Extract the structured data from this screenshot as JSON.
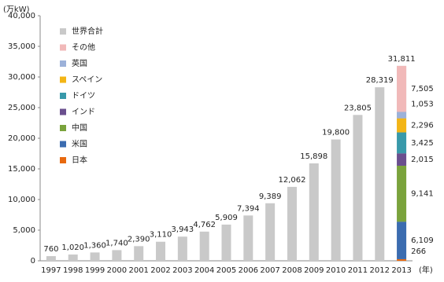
{
  "chart_data": {
    "type": "bar",
    "y_unit": "(万kW)",
    "x_unit": "(年)",
    "categories": [
      "1997",
      "1998",
      "1999",
      "2000",
      "2001",
      "2002",
      "2003",
      "2004",
      "2005",
      "2006",
      "2007",
      "2008",
      "2009",
      "2010",
      "2011",
      "2012",
      "2013"
    ],
    "series": [
      {
        "name": "世界合計",
        "color": "#c9c9c9",
        "stacked": false,
        "values": [
          760,
          1020,
          1360,
          1740,
          2390,
          3110,
          3943,
          4762,
          5909,
          7394,
          9389,
          12062,
          15898,
          19800,
          23805,
          28319,
          31811
        ],
        "value_labels": [
          "760",
          "1,020",
          "1,360",
          "1,740",
          "2,390",
          "3,110",
          "3,943",
          "4,762",
          "5,909",
          "7,394",
          "9,389",
          "12,062",
          "15,898",
          "19,800",
          "23,805",
          "28,319",
          "31,811"
        ]
      },
      {
        "name": "その他",
        "color": "#f1b9b9",
        "stacked": true,
        "values": [
          null,
          null,
          null,
          null,
          null,
          null,
          null,
          null,
          null,
          null,
          null,
          null,
          null,
          null,
          null,
          null,
          7505
        ],
        "value_labels": [
          null,
          null,
          null,
          null,
          null,
          null,
          null,
          null,
          null,
          null,
          null,
          null,
          null,
          null,
          null,
          null,
          "7,505"
        ]
      },
      {
        "name": "英国",
        "color": "#9cb1d9",
        "stacked": true,
        "values": [
          null,
          null,
          null,
          null,
          null,
          null,
          null,
          null,
          null,
          null,
          null,
          null,
          null,
          null,
          null,
          null,
          1053
        ],
        "value_labels": [
          null,
          null,
          null,
          null,
          null,
          null,
          null,
          null,
          null,
          null,
          null,
          null,
          null,
          null,
          null,
          null,
          "1,053"
        ]
      },
      {
        "name": "スペイン",
        "color": "#f3b516",
        "stacked": true,
        "values": [
          null,
          null,
          null,
          null,
          null,
          null,
          null,
          null,
          null,
          null,
          null,
          null,
          null,
          null,
          null,
          null,
          2296
        ],
        "value_labels": [
          null,
          null,
          null,
          null,
          null,
          null,
          null,
          null,
          null,
          null,
          null,
          null,
          null,
          null,
          null,
          null,
          "2,296"
        ]
      },
      {
        "name": "ドイツ",
        "color": "#3899aa",
        "stacked": true,
        "values": [
          null,
          null,
          null,
          null,
          null,
          null,
          null,
          null,
          null,
          null,
          null,
          null,
          null,
          null,
          null,
          null,
          3425
        ],
        "value_labels": [
          null,
          null,
          null,
          null,
          null,
          null,
          null,
          null,
          null,
          null,
          null,
          null,
          null,
          null,
          null,
          null,
          "3,425"
        ]
      },
      {
        "name": "インド",
        "color": "#6a4f8e",
        "stacked": true,
        "values": [
          null,
          null,
          null,
          null,
          null,
          null,
          null,
          null,
          null,
          null,
          null,
          null,
          null,
          null,
          null,
          null,
          2015
        ],
        "value_labels": [
          null,
          null,
          null,
          null,
          null,
          null,
          null,
          null,
          null,
          null,
          null,
          null,
          null,
          null,
          null,
          null,
          "2,015"
        ]
      },
      {
        "name": "中国",
        "color": "#7aa33c",
        "stacked": true,
        "values": [
          null,
          null,
          null,
          null,
          null,
          null,
          null,
          null,
          null,
          null,
          null,
          null,
          null,
          null,
          null,
          null,
          9141
        ],
        "value_labels": [
          null,
          null,
          null,
          null,
          null,
          null,
          null,
          null,
          null,
          null,
          null,
          null,
          null,
          null,
          null,
          null,
          "9,141"
        ]
      },
      {
        "name": "米国",
        "color": "#3b6cb0",
        "stacked": true,
        "values": [
          null,
          null,
          null,
          null,
          null,
          null,
          null,
          null,
          null,
          null,
          null,
          null,
          null,
          null,
          null,
          null,
          6109
        ],
        "value_labels": [
          null,
          null,
          null,
          null,
          null,
          null,
          null,
          null,
          null,
          null,
          null,
          null,
          null,
          null,
          null,
          null,
          "6,109"
        ]
      },
      {
        "name": "日本",
        "color": "#e8690f",
        "stacked": true,
        "values": [
          null,
          null,
          null,
          null,
          null,
          null,
          null,
          null,
          null,
          null,
          null,
          null,
          null,
          null,
          null,
          null,
          266
        ]
      }
    ],
    "ylim": [
      0,
      40000
    ],
    "yticks": [
      0,
      {
        "value": 5000,
        "label": "5,000"
      },
      {
        "value": 10000,
        "label": "10,000"
      },
      {
        "value": 15000,
        "label": "15,000"
      },
      {
        "value": 20000,
        "label": "20,000"
      },
      {
        "value": 25000,
        "label": "25,000"
      },
      {
        "value": 30000,
        "label": "30,000"
      },
      {
        "value": 35000,
        "label": "35,000"
      },
      {
        "value": 40000,
        "label": "40,000"
      }
    ],
    "grid": false
  }
}
